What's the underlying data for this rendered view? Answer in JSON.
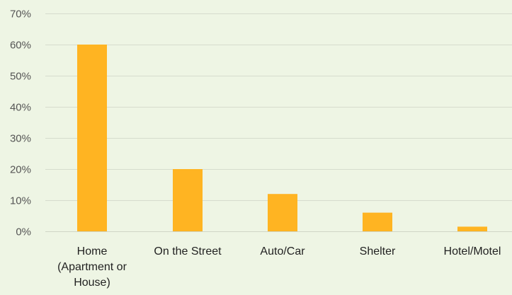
{
  "chart_data": {
    "type": "bar",
    "categories": [
      [
        "Home",
        "(Apartment or",
        "House)"
      ],
      [
        "On the Street"
      ],
      [
        "Auto/Car"
      ],
      [
        "Shelter"
      ],
      [
        "Hotel/Motel"
      ]
    ],
    "values": [
      60,
      20,
      12,
      6,
      1.5
    ],
    "ylim": [
      0,
      70
    ],
    "yticks": [
      0,
      10,
      20,
      30,
      40,
      50,
      60,
      70
    ],
    "ytick_labels": [
      "0%",
      "10%",
      "20%",
      "30%",
      "40%",
      "50%",
      "60%",
      "70%"
    ],
    "grid": true,
    "legend": "none",
    "colors": {
      "bar": "#ffb422",
      "background": "#eef5e4",
      "grid": "#d6dccd"
    }
  }
}
